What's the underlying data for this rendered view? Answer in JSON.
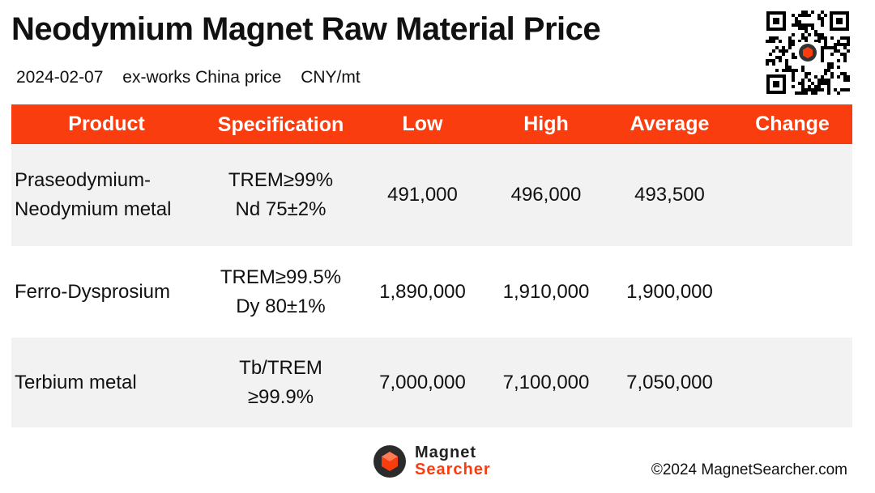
{
  "header": {
    "title": "Neodymium Magnet Raw Material Price",
    "date": "2024-02-07",
    "basis": "ex-works China price",
    "unit": "CNY/mt"
  },
  "table": {
    "columns": [
      "Product",
      "Specification",
      "Low",
      "High",
      "Average",
      "Change"
    ],
    "rows": [
      {
        "product": [
          "Praseodymium-",
          "Neodymium metal"
        ],
        "spec": [
          "TREM≥99%",
          "Nd 75±2%"
        ],
        "low": "491,000",
        "high": "496,000",
        "average": "493,500",
        "change": ""
      },
      {
        "product": [
          "Ferro-Dysprosium",
          ""
        ],
        "spec": [
          "TREM≥99.5%",
          "Dy 80±1%"
        ],
        "low": "1,890,000",
        "high": "1,910,000",
        "average": "1,900,000",
        "change": ""
      },
      {
        "product": [
          "Terbium metal",
          ""
        ],
        "spec": [
          "Tb/TREM",
          "≥99.9%"
        ],
        "low": "7,000,000",
        "high": "7,100,000",
        "average": "7,050,000",
        "change": ""
      }
    ]
  },
  "footer": {
    "logo_line1": "Magnet",
    "logo_line2": "Searcher",
    "copyright": "©2024 MagnetSearcher.com"
  },
  "colors": {
    "accent": "#fa3d0f",
    "row_shade": "#f2f2f2"
  },
  "icons": [
    "qr-code-icon",
    "magnet-searcher-logo-icon"
  ]
}
